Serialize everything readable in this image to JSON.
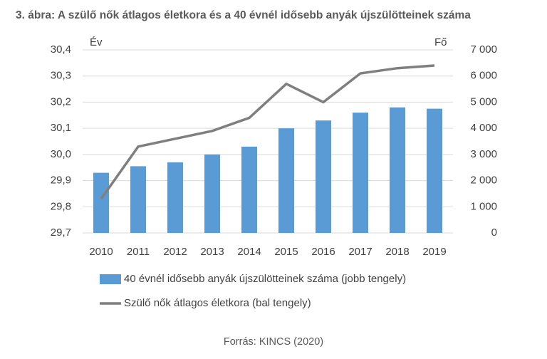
{
  "chart_data": {
    "type": "combo",
    "title": "3. ábra: A szülő nők átlagos életkora és a 40 évnél idősebb anyák újszülötteinek száma",
    "source": "Forrás: KINCS (2020)",
    "ylabel": "Év",
    "y2label": "Fő",
    "categories": [
      "2010",
      "2011",
      "2012",
      "2013",
      "2014",
      "2015",
      "2016",
      "2017",
      "2018",
      "2019"
    ],
    "series": [
      {
        "name": "40 évnél idősebb anyák újszülötteinek száma (jobb tengely)",
        "kind": "bar",
        "axis": "y2",
        "color": "#5b9bd5",
        "values": [
          2300,
          2550,
          2700,
          3000,
          3300,
          4000,
          4300,
          4600,
          4800,
          4750
        ]
      },
      {
        "name": "Szülő nők átlagos életkora (bal tengely)",
        "kind": "line",
        "axis": "y",
        "color": "#7f7f7f",
        "values": [
          29.83,
          30.03,
          30.06,
          30.09,
          30.14,
          30.27,
          30.2,
          30.31,
          30.33,
          30.34
        ]
      }
    ],
    "ylim": [
      29.7,
      30.4
    ],
    "yticks": [
      {
        "value": 29.7,
        "label": "29,7"
      },
      {
        "value": 29.8,
        "label": "29,8"
      },
      {
        "value": 29.9,
        "label": "29,9"
      },
      {
        "value": 30.0,
        "label": "30,0"
      },
      {
        "value": 30.1,
        "label": "30,1"
      },
      {
        "value": 30.2,
        "label": "30,2"
      },
      {
        "value": 30.3,
        "label": "30,3"
      },
      {
        "value": 30.4,
        "label": "30,4"
      }
    ],
    "y2lim": [
      0,
      7000
    ],
    "y2ticks": [
      0,
      {
        "value": 1000,
        "label": "1 000"
      },
      {
        "value": 2000,
        "label": "2 000"
      },
      {
        "value": 3000,
        "label": "3 000"
      },
      {
        "value": 4000,
        "label": "4 000"
      },
      {
        "value": 5000,
        "label": "5 000"
      },
      {
        "value": 6000,
        "label": "6 000"
      },
      {
        "value": 7000,
        "label": "7 000"
      }
    ],
    "grid": true
  }
}
